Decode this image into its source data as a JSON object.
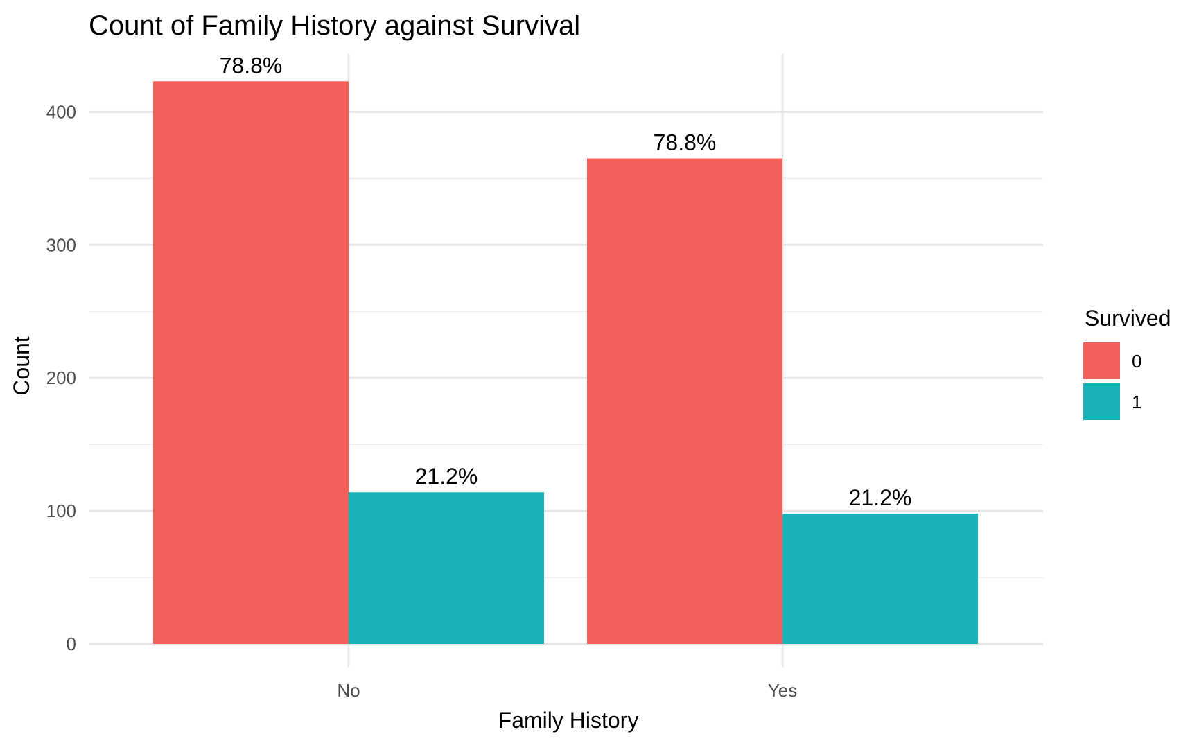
{
  "chart_data": {
    "type": "bar",
    "title": "Count of Family History against Survival",
    "xlabel": "Family History",
    "ylabel": "Count",
    "categories": [
      "No",
      "Yes"
    ],
    "series": [
      {
        "name": "0",
        "color": "#F35F5B",
        "values": [
          423,
          365
        ],
        "labels": [
          "78.8%",
          "78.8%"
        ]
      },
      {
        "name": "1",
        "color": "#19B2B6",
        "values": [
          114,
          98
        ],
        "labels": [
          "21.2%",
          "21.2%"
        ]
      }
    ],
    "ylim": [
      0,
      440
    ],
    "yticks": [
      0,
      100,
      200,
      300,
      400
    ],
    "grid": true,
    "legend": {
      "title": "Survived",
      "position": "right"
    }
  }
}
